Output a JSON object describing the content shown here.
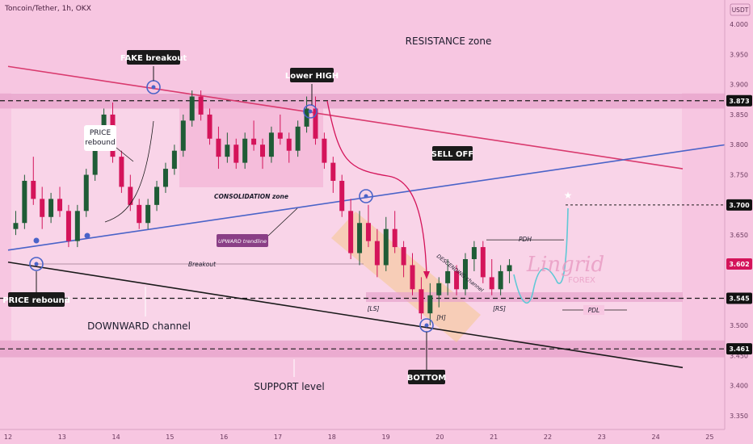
{
  "header": {
    "symbol_text": "Toncoin/Tether, 1h, OKX",
    "currency": "USDT"
  },
  "colors": {
    "background": "#f7c6e1",
    "zone_band": "#e9a6cc",
    "bull_candle": "#1f5c36",
    "bear_candle": "#d4145a",
    "resistance_line": "#d93a6e",
    "uptrend_line": "#4a63c8",
    "support_line": "#1a1a1a",
    "callout_bg": "#1a1a1a",
    "projection": "#5fc8d6",
    "descending_channel": "#f5c78e"
  },
  "chart_data": {
    "type": "candlestick",
    "symbol": "Toncoin/Tether",
    "interval": "1h",
    "exchange": "OKX",
    "ylim": [
      3.32,
      4.02
    ],
    "y_ticks": [
      4.0,
      3.95,
      3.9,
      3.85,
      3.8,
      3.75,
      3.7,
      3.65,
      3.6,
      3.55,
      3.5,
      3.45,
      3.4,
      3.35
    ],
    "x_tick_labels": [
      "12",
      "13",
      "14",
      "15",
      "16",
      "17",
      "18",
      "19",
      "20",
      "21",
      "22",
      "23",
      "24",
      "25"
    ],
    "price_tags": [
      {
        "label": "3.873",
        "value": 3.873,
        "color": "#111111"
      },
      {
        "label": "3.700",
        "value": 3.7,
        "color": "#111111"
      },
      {
        "label": "3.602",
        "value": 3.602,
        "color": "#d4145a"
      },
      {
        "label": "3.545",
        "value": 3.545,
        "color": "#111111"
      },
      {
        "label": "3.461",
        "value": 3.461,
        "color": "#111111"
      }
    ],
    "zones": [
      {
        "name": "RESISTANCE zone",
        "low": 3.86,
        "high": 3.885
      },
      {
        "name": "SUPPORT level",
        "low": 3.447,
        "high": 3.475
      }
    ],
    "trendlines": {
      "resistance": {
        "from": [
          12.0,
          3.93
        ],
        "to": [
          24.5,
          3.76
        ]
      },
      "uptrend": {
        "from": [
          12.0,
          3.625
        ],
        "to": [
          25.3,
          3.8
        ]
      },
      "support": {
        "from": [
          12.0,
          3.605
        ],
        "to": [
          24.5,
          3.43
        ]
      }
    },
    "candles": [
      {
        "o": 3.66,
        "h": 3.69,
        "l": 3.65,
        "c": 3.67
      },
      {
        "o": 3.67,
        "h": 3.75,
        "l": 3.66,
        "c": 3.74
      },
      {
        "o": 3.74,
        "h": 3.78,
        "l": 3.7,
        "c": 3.71
      },
      {
        "o": 3.71,
        "h": 3.73,
        "l": 3.66,
        "c": 3.68
      },
      {
        "o": 3.68,
        "h": 3.72,
        "l": 3.67,
        "c": 3.71
      },
      {
        "o": 3.71,
        "h": 3.73,
        "l": 3.68,
        "c": 3.69
      },
      {
        "o": 3.69,
        "h": 3.7,
        "l": 3.63,
        "c": 3.64
      },
      {
        "o": 3.64,
        "h": 3.7,
        "l": 3.63,
        "c": 3.69
      },
      {
        "o": 3.69,
        "h": 3.76,
        "l": 3.68,
        "c": 3.75
      },
      {
        "o": 3.75,
        "h": 3.82,
        "l": 3.74,
        "c": 3.8
      },
      {
        "o": 3.8,
        "h": 3.86,
        "l": 3.79,
        "c": 3.85
      },
      {
        "o": 3.85,
        "h": 3.87,
        "l": 3.77,
        "c": 3.78
      },
      {
        "o": 3.78,
        "h": 3.79,
        "l": 3.72,
        "c": 3.73
      },
      {
        "o": 3.73,
        "h": 3.75,
        "l": 3.69,
        "c": 3.7
      },
      {
        "o": 3.7,
        "h": 3.71,
        "l": 3.66,
        "c": 3.67
      },
      {
        "o": 3.67,
        "h": 3.71,
        "l": 3.66,
        "c": 3.7
      },
      {
        "o": 3.7,
        "h": 3.74,
        "l": 3.69,
        "c": 3.73
      },
      {
        "o": 3.73,
        "h": 3.77,
        "l": 3.72,
        "c": 3.76
      },
      {
        "o": 3.76,
        "h": 3.8,
        "l": 3.75,
        "c": 3.79
      },
      {
        "o": 3.79,
        "h": 3.85,
        "l": 3.78,
        "c": 3.84
      },
      {
        "o": 3.84,
        "h": 3.89,
        "l": 3.83,
        "c": 3.88
      },
      {
        "o": 3.88,
        "h": 3.89,
        "l": 3.84,
        "c": 3.85
      },
      {
        "o": 3.85,
        "h": 3.86,
        "l": 3.8,
        "c": 3.81
      },
      {
        "o": 3.81,
        "h": 3.83,
        "l": 3.76,
        "c": 3.78
      },
      {
        "o": 3.78,
        "h": 3.82,
        "l": 3.77,
        "c": 3.8
      },
      {
        "o": 3.8,
        "h": 3.81,
        "l": 3.76,
        "c": 3.77
      },
      {
        "o": 3.77,
        "h": 3.82,
        "l": 3.76,
        "c": 3.81
      },
      {
        "o": 3.81,
        "h": 3.84,
        "l": 3.79,
        "c": 3.8
      },
      {
        "o": 3.8,
        "h": 3.81,
        "l": 3.76,
        "c": 3.78
      },
      {
        "o": 3.78,
        "h": 3.83,
        "l": 3.77,
        "c": 3.82
      },
      {
        "o": 3.82,
        "h": 3.85,
        "l": 3.8,
        "c": 3.81
      },
      {
        "o": 3.81,
        "h": 3.82,
        "l": 3.77,
        "c": 3.79
      },
      {
        "o": 3.79,
        "h": 3.84,
        "l": 3.78,
        "c": 3.83
      },
      {
        "o": 3.83,
        "h": 3.88,
        "l": 3.82,
        "c": 3.86
      },
      {
        "o": 3.86,
        "h": 3.88,
        "l": 3.8,
        "c": 3.81
      },
      {
        "o": 3.81,
        "h": 3.82,
        "l": 3.76,
        "c": 3.77
      },
      {
        "o": 3.77,
        "h": 3.78,
        "l": 3.72,
        "c": 3.74
      },
      {
        "o": 3.74,
        "h": 3.75,
        "l": 3.68,
        "c": 3.69
      },
      {
        "o": 3.69,
        "h": 3.71,
        "l": 3.61,
        "c": 3.62
      },
      {
        "o": 3.62,
        "h": 3.69,
        "l": 3.6,
        "c": 3.67
      },
      {
        "o": 3.67,
        "h": 3.7,
        "l": 3.63,
        "c": 3.64
      },
      {
        "o": 3.64,
        "h": 3.66,
        "l": 3.58,
        "c": 3.6
      },
      {
        "o": 3.6,
        "h": 3.68,
        "l": 3.59,
        "c": 3.66
      },
      {
        "o": 3.66,
        "h": 3.69,
        "l": 3.62,
        "c": 3.63
      },
      {
        "o": 3.63,
        "h": 3.64,
        "l": 3.58,
        "c": 3.6
      },
      {
        "o": 3.6,
        "h": 3.62,
        "l": 3.55,
        "c": 3.56
      },
      {
        "o": 3.56,
        "h": 3.58,
        "l": 3.51,
        "c": 3.52
      },
      {
        "o": 3.52,
        "h": 3.57,
        "l": 3.5,
        "c": 3.55
      },
      {
        "o": 3.55,
        "h": 3.58,
        "l": 3.53,
        "c": 3.57
      },
      {
        "o": 3.57,
        "h": 3.61,
        "l": 3.55,
        "c": 3.59
      },
      {
        "o": 3.59,
        "h": 3.6,
        "l": 3.55,
        "c": 3.56
      },
      {
        "o": 3.56,
        "h": 3.62,
        "l": 3.55,
        "c": 3.61
      },
      {
        "o": 3.61,
        "h": 3.64,
        "l": 3.59,
        "c": 3.63
      },
      {
        "o": 3.63,
        "h": 3.64,
        "l": 3.57,
        "c": 3.58
      },
      {
        "o": 3.58,
        "h": 3.61,
        "l": 3.55,
        "c": 3.56
      },
      {
        "o": 3.56,
        "h": 3.6,
        "l": 3.55,
        "c": 3.59
      },
      {
        "o": 3.59,
        "h": 3.61,
        "l": 3.57,
        "c": 3.6
      }
    ],
    "annotations": {
      "symbol_note": "Toncoin/Tether, 1h, OKX",
      "resistance_zone": "RESISTANCE zone",
      "fake_breakout": "FAKE breakout",
      "lower_high": "Lower HIGH",
      "price_rebound_mid": "PRICE\nrebound",
      "consolidation": "CONSOLIDATION zone",
      "sell_off": "SELL OFF",
      "upward_trendline": "UPWARD trendline",
      "descending_channel": "DESCENDING channel",
      "breakout": "Breakout",
      "price_rebound_left": "PRICE rebound",
      "downward_channel": "DOWNWARD channel",
      "bottom": "BOTTOM",
      "support_level": "SUPPORT level",
      "ls": "[LS]",
      "h": "[H]",
      "rs": "[RS]",
      "pdh": "PDH",
      "pdl": "PDL",
      "watermark": "Lingrid",
      "watermark_sub": "FOREX"
    }
  }
}
